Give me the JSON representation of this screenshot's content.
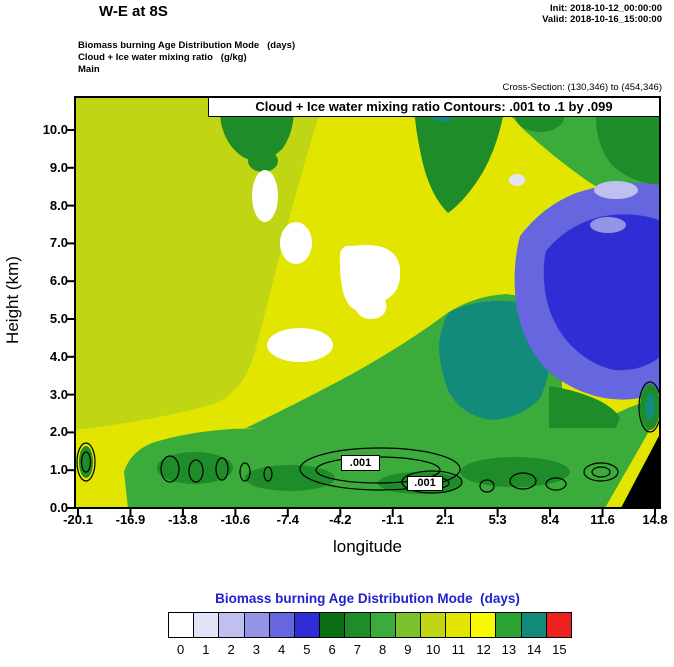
{
  "header": {
    "title": "W-E at 8S",
    "init_line": "Init: 2018-10-12_00:00:00",
    "valid_line": "Valid: 2018-10-16_15:00:00",
    "field_line1": "Biomass burning Age Distribution Mode   (days)",
    "field_line2": "Cloud + Ice water mixing ratio   (g/kg)",
    "field_line3": "Main",
    "cross_section": "Cross-Section: (130,346) to (454,346)"
  },
  "chart_data": {
    "type": "heatmap",
    "title": "Cloud + Ice water mixing ratio Contours: .001 to .1 by .099",
    "xlabel": "longitude",
    "ylabel": "Height (km)",
    "x_ticks": [
      "-20.1",
      "-16.9",
      "-13.8",
      "-10.6",
      "-7.4",
      "-4.2",
      "-1.1",
      "2.1",
      "5.3",
      "8.4",
      "11.6",
      "14.8"
    ],
    "y_ticks": [
      "0.0",
      "1.0",
      "2.0",
      "3.0",
      "4.0",
      "5.0",
      "6.0",
      "7.0",
      "8.0",
      "9.0",
      "10.0"
    ],
    "x_range": [
      -20.1,
      14.8
    ],
    "y_range_km": [
      0.0,
      10.9
    ],
    "fill_variable": "Biomass burning Age Distribution Mode (days)",
    "contour_variable": "Cloud + Ice water mixing ratio (g/kg)",
    "contour_levels": [
      0.001,
      0.1
    ],
    "contour_line_labels": [
      ".001",
      ".001"
    ],
    "field_summary": [
      {
        "area": "broad background over most of the section, 2-11 km",
        "age_days": 11
      },
      {
        "area": "upper-left region, lon -20.1 to about -8, 2.5-11 km",
        "age_days": 10
      },
      {
        "area": "pockets near 4-8.5 km around lon -9 to -2",
        "age_days": 0
      },
      {
        "area": "blobs at 9-11 km near lon -14 to -12, lon -4 to -1, and along the top right",
        "age_days": 7
      },
      {
        "area": "wedge 3-5.5 km, lon -3 to 4",
        "age_days": 8
      },
      {
        "area": "core of wedge 3-5 km, lon 0 to 4",
        "age_days": 14
      },
      {
        "area": "right side 4.5-8.5 km, lon 7 to 14.8 (blue minimum)",
        "age_days": 5
      },
      {
        "area": "rims of blue minimum",
        "age_days": 3
      },
      {
        "area": "boundary-layer band below about 2.2 km",
        "age_days": 8
      },
      {
        "area": "dark patches inside boundary-layer band",
        "age_days": 7
      },
      {
        "area": "bottom-right corner near lon 14.8",
        "age_days": "terrain (black)"
      }
    ],
    "contour_note": "Thin black cloud/ice mixing-ratio contours (.001) form closed cells between 0.5 and 1.5 km across the section",
    "colorbar": {
      "title": "Biomass burning Age Distribution Mode  (days)",
      "title_color": "#2222cc",
      "labels": [
        "0",
        "1",
        "2",
        "3",
        "4",
        "5",
        "6",
        "7",
        "8",
        "9",
        "10",
        "11",
        "12",
        "13",
        "14",
        "15"
      ],
      "colors": [
        "#ffffff",
        "#e4e4f8",
        "#bfbff0",
        "#9595e8",
        "#6666de",
        "#2e2ed4",
        "#0a6e14",
        "#1e8c28",
        "#3bac3b",
        "#7cc22c",
        "#c0d614",
        "#e1e500",
        "#f8f800",
        "#2aa332",
        "#128b7a",
        "#ee2020"
      ]
    }
  }
}
